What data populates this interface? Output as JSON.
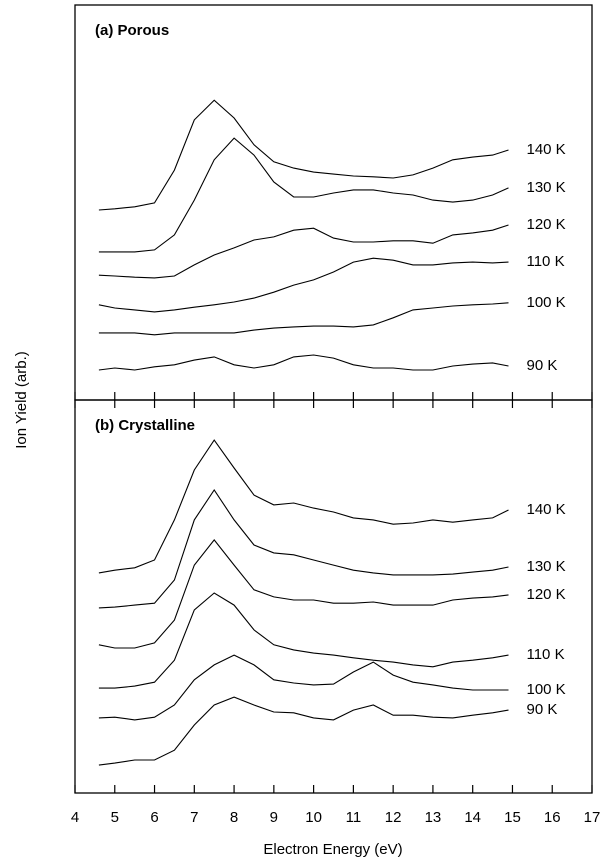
{
  "chart_data": [
    {
      "type": "line",
      "title": "(a) Porous",
      "ylabel": "Ion Yield (arb.)",
      "xlim": [
        4,
        17
      ],
      "ylim": [
        0,
        100
      ],
      "xticks": [
        4,
        5,
        6,
        7,
        8,
        9,
        10,
        11,
        12,
        13,
        14,
        15,
        16,
        17
      ],
      "x": [
        4.6,
        5,
        5.5,
        6,
        6.5,
        7,
        7.5,
        8,
        8.5,
        9,
        9.5,
        10,
        10.5,
        11,
        11.5,
        12,
        12.5,
        13,
        13.5,
        14,
        14.5,
        14.9
      ],
      "series": [
        {
          "name": "140 K",
          "color": "#000000",
          "values": [
            48.1,
            48.4,
            48.9,
            49.9,
            58.2,
            70.9,
            75.9,
            71.4,
            64.6,
            60.3,
            58.7,
            57.7,
            57.2,
            56.7,
            56.5,
            56.2,
            57.0,
            58.7,
            60.8,
            61.5,
            62.0,
            63.3
          ]
        },
        {
          "name": "130 K",
          "color": "#000000",
          "values": [
            37.5,
            37.5,
            37.5,
            38.0,
            41.8,
            50.6,
            60.8,
            66.3,
            62.0,
            55.2,
            51.4,
            51.4,
            52.4,
            53.2,
            53.2,
            52.4,
            51.9,
            50.6,
            50.1,
            50.6,
            51.9,
            53.7
          ]
        },
        {
          "name": "120 K",
          "color": "#000000",
          "values": [
            31.6,
            31.4,
            31.1,
            30.9,
            31.4,
            34.2,
            36.7,
            38.5,
            40.5,
            41.3,
            43.0,
            43.5,
            41.0,
            40.0,
            40.0,
            40.3,
            40.3,
            39.7,
            41.8,
            42.3,
            43.0,
            44.3
          ]
        },
        {
          "name": "110 K",
          "color": "#000000",
          "values": [
            24.1,
            23.3,
            22.8,
            22.3,
            22.8,
            23.5,
            24.1,
            24.8,
            25.8,
            27.3,
            29.1,
            30.4,
            32.4,
            34.9,
            35.9,
            35.4,
            34.2,
            34.2,
            34.7,
            34.9,
            34.7,
            34.9
          ]
        },
        {
          "name": "100 K",
          "color": "#000000",
          "values": [
            17.0,
            17.0,
            17.0,
            16.5,
            17.0,
            17.0,
            17.0,
            17.0,
            17.7,
            18.2,
            18.5,
            18.7,
            18.7,
            18.5,
            19.0,
            20.8,
            22.8,
            23.3,
            23.8,
            24.1,
            24.3,
            24.6
          ]
        },
        {
          "name": "90 K",
          "color": "#000000",
          "values": [
            7.6,
            8.1,
            7.6,
            8.4,
            8.9,
            10.1,
            10.9,
            8.9,
            8.1,
            8.9,
            10.9,
            11.4,
            10.6,
            8.9,
            8.1,
            8.1,
            7.6,
            7.6,
            8.6,
            9.1,
            9.4,
            8.6
          ]
        }
      ]
    },
    {
      "type": "line",
      "title": "(b) Crystalline",
      "xlabel": "Electron Energy (eV)",
      "xlim": [
        4,
        17
      ],
      "ylim": [
        0,
        100
      ],
      "xticks": [
        4,
        5,
        6,
        7,
        8,
        9,
        10,
        11,
        12,
        13,
        14,
        15,
        16,
        17
      ],
      "x": [
        4.6,
        5,
        5.5,
        6,
        6.5,
        7,
        7.5,
        8,
        8.5,
        9,
        9.5,
        10,
        10.5,
        11,
        11.5,
        12,
        12.5,
        13,
        13.5,
        14,
        14.5,
        14.9
      ],
      "series": [
        {
          "name": "140 K",
          "color": "#000000",
          "values": [
            56.0,
            56.7,
            57.3,
            59.3,
            69.5,
            82.2,
            89.8,
            82.7,
            75.8,
            73.3,
            73.8,
            72.5,
            71.5,
            70.0,
            69.5,
            68.4,
            68.7,
            69.5,
            68.9,
            69.5,
            70.0,
            72.0
          ]
        },
        {
          "name": "130 K",
          "color": "#000000",
          "values": [
            47.1,
            47.3,
            47.8,
            48.3,
            54.2,
            69.5,
            77.1,
            69.5,
            63.1,
            61.1,
            60.6,
            59.3,
            58.0,
            56.7,
            56.0,
            55.5,
            55.5,
            55.5,
            55.7,
            56.2,
            56.7,
            57.5
          ]
        },
        {
          "name": "120 K",
          "color": "#000000",
          "values": [
            37.7,
            36.9,
            36.9,
            38.2,
            44.0,
            58.0,
            64.4,
            58.0,
            51.7,
            49.9,
            49.1,
            49.1,
            48.3,
            48.3,
            48.6,
            47.8,
            47.8,
            47.8,
            49.1,
            49.6,
            49.9,
            50.4
          ]
        },
        {
          "name": "110 K",
          "color": "#000000",
          "values": [
            26.7,
            26.7,
            27.2,
            28.2,
            33.8,
            46.6,
            50.9,
            47.8,
            41.5,
            37.7,
            36.4,
            35.6,
            35.1,
            34.4,
            33.8,
            33.3,
            32.6,
            32.1,
            33.3,
            33.8,
            34.4,
            35.1
          ]
        },
        {
          "name": "100 K",
          "color": "#000000",
          "values": [
            19.1,
            19.3,
            18.6,
            19.3,
            22.4,
            28.8,
            32.6,
            35.1,
            32.6,
            28.8,
            28.0,
            27.5,
            27.7,
            30.8,
            33.3,
            30.0,
            28.2,
            27.5,
            26.7,
            26.2,
            26.2,
            26.2
          ]
        },
        {
          "name": "90 K",
          "color": "#000000",
          "values": [
            7.1,
            7.6,
            8.4,
            8.4,
            10.9,
            17.3,
            22.4,
            24.4,
            22.4,
            20.6,
            20.4,
            19.1,
            18.6,
            21.1,
            22.4,
            19.8,
            19.8,
            19.3,
            19.1,
            19.8,
            20.4,
            21.1
          ]
        }
      ]
    }
  ]
}
